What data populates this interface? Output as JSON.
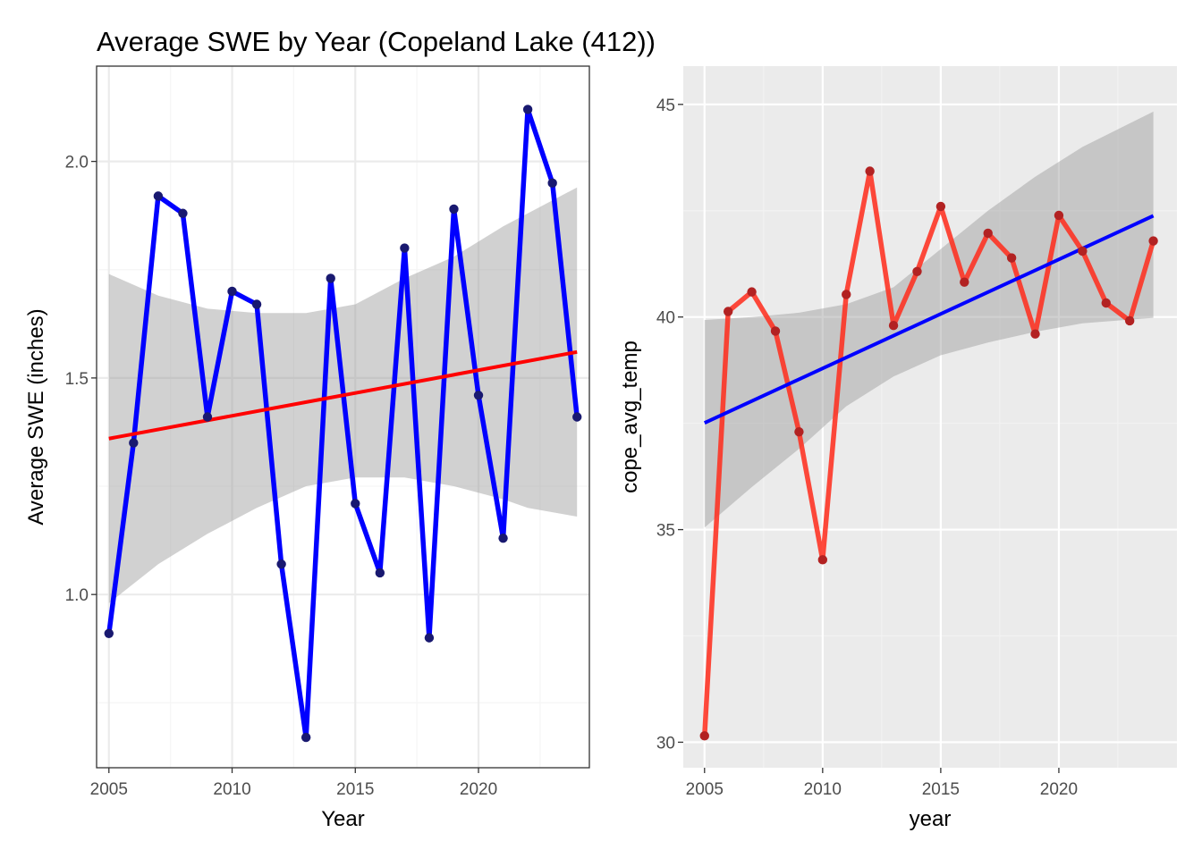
{
  "figure": {
    "title": "Average SWE by Year (Copeland Lake (412))"
  },
  "chart_data": [
    {
      "type": "line",
      "panel": "left",
      "theme": "bw",
      "xlabel": "Year",
      "ylabel": "Average SWE (inches)",
      "xlim": [
        2004.5,
        2024.5
      ],
      "ylim": [
        0.6,
        2.22
      ],
      "x_ticks": [
        2005,
        2010,
        2015,
        2020
      ],
      "x_tick_labels": [
        "2005",
        "2010",
        "2015",
        "2020"
      ],
      "y_ticks": [
        1.0,
        1.5,
        2.0
      ],
      "y_tick_labels": [
        "1.0",
        "1.5",
        "2.0"
      ],
      "grid": true,
      "colors": {
        "line": "#0000ff",
        "points": "#191970",
        "trend": "#ff0000",
        "ribbon": "#999999"
      },
      "series": [
        {
          "x": [
            2005,
            2006,
            2007,
            2008,
            2009,
            2010,
            2011,
            2012,
            2013,
            2014,
            2015,
            2016,
            2017,
            2018,
            2019,
            2020,
            2021,
            2022,
            2023,
            2024
          ],
          "values": [
            0.91,
            1.35,
            1.92,
            1.88,
            1.41,
            1.7,
            1.67,
            1.07,
            0.67,
            1.73,
            1.21,
            1.05,
            1.8,
            0.9,
            1.89,
            1.46,
            1.13,
            2.12,
            1.95,
            1.41
          ]
        }
      ],
      "trend": {
        "x": [
          2005,
          2024
        ],
        "y": [
          1.36,
          1.56
        ]
      },
      "ribbon": {
        "x": [
          2005,
          2007,
          2009,
          2011,
          2013,
          2015,
          2017,
          2019,
          2021,
          2022,
          2024
        ],
        "upper": [
          1.74,
          1.69,
          1.66,
          1.65,
          1.65,
          1.67,
          1.73,
          1.78,
          1.85,
          1.88,
          1.94
        ],
        "lower": [
          0.98,
          1.07,
          1.14,
          1.2,
          1.25,
          1.27,
          1.27,
          1.25,
          1.22,
          1.2,
          1.18
        ]
      }
    },
    {
      "type": "line",
      "panel": "right",
      "theme": "gray",
      "xlabel": "year",
      "ylabel": "cope_avg_temp",
      "xlim": [
        2004.1,
        2025.0
      ],
      "ylim": [
        29.4,
        45.9
      ],
      "x_ticks": [
        2005,
        2010,
        2015,
        2020
      ],
      "x_tick_labels": [
        "2005",
        "2010",
        "2015",
        "2020"
      ],
      "y_ticks": [
        30,
        35,
        40,
        45
      ],
      "y_tick_labels": [
        "30",
        "35",
        "40",
        "45"
      ],
      "grid": true,
      "colors": {
        "line": "#ff2a1a",
        "points": "#b22222",
        "trend": "#0000ff",
        "ribbon": "#999999"
      },
      "series": [
        {
          "x": [
            2005,
            2006,
            2007,
            2008,
            2009,
            2010,
            2011,
            2012,
            2013,
            2014,
            2015,
            2016,
            2017,
            2018,
            2019,
            2020,
            2021,
            2022,
            2023,
            2024
          ],
          "values": [
            30.15,
            40.13,
            40.59,
            39.67,
            37.3,
            34.29,
            40.53,
            43.43,
            39.8,
            41.07,
            42.6,
            40.82,
            41.97,
            41.39,
            39.6,
            42.39,
            41.55,
            40.33,
            39.91,
            41.79
          ]
        }
      ],
      "trend": {
        "x": [
          2005,
          2024
        ],
        "y": [
          37.51,
          42.38
        ]
      },
      "ribbon": {
        "x": [
          2005,
          2007,
          2009,
          2011,
          2013,
          2015,
          2017,
          2019,
          2021,
          2024
        ],
        "upper": [
          39.93,
          40.0,
          40.1,
          40.3,
          40.7,
          41.6,
          42.5,
          43.3,
          44.0,
          44.83
        ],
        "lower": [
          35.05,
          36.0,
          36.9,
          37.9,
          38.6,
          39.1,
          39.4,
          39.65,
          39.85,
          39.98
        ]
      }
    }
  ]
}
